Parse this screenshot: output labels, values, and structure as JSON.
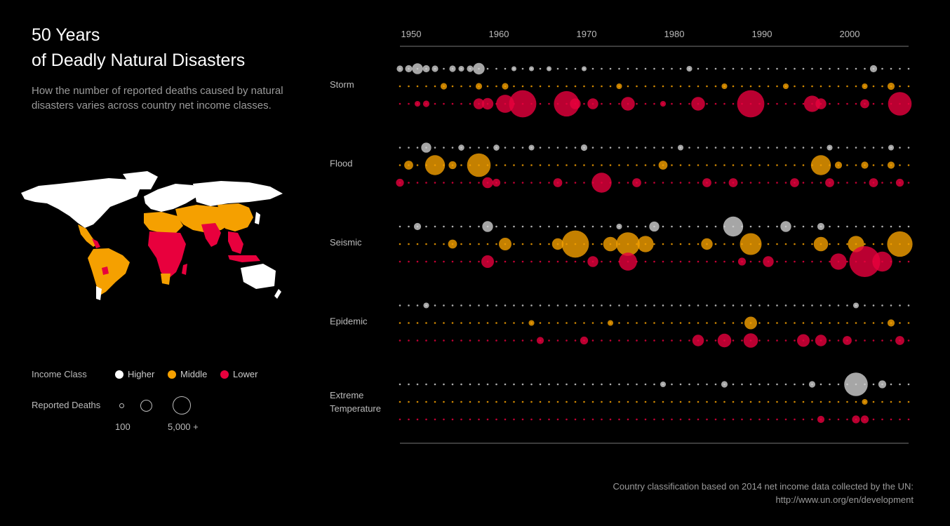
{
  "title": {
    "line1": "50 Years",
    "line2": "of Deadly Natural Disasters"
  },
  "subtitle": "How the number of reported deaths caused by natural disasters varies across country net income classes.",
  "legend": {
    "income_label": "Income Class",
    "classes": [
      {
        "label": "Higher",
        "color": "#ffffff"
      },
      {
        "label": "Middle",
        "color": "#f5a000"
      },
      {
        "label": "Lower",
        "color": "#e8003d"
      }
    ],
    "deaths_label": "Reported Deaths",
    "size_min_label": "100",
    "size_max_label": "5,000 +"
  },
  "footnote": {
    "line1": "Country classification based on 2014 net income data collected by the UN:",
    "line2": "http://www.un.org/en/development"
  },
  "chart_data": {
    "type": "scatter",
    "x_ticks": [
      "1950",
      "1960",
      "1970",
      "1980",
      "1990",
      "2000"
    ],
    "xlim": [
      1950,
      2008
    ],
    "categories": [
      "Storm",
      "Flood",
      "Seismic",
      "Epidemic",
      "Extreme Temperature"
    ],
    "classes": [
      "Higher",
      "Middle",
      "Lower"
    ],
    "colors": {
      "Higher": "#ffffff",
      "Middle": "#f5a000",
      "Lower": "#e8003d"
    },
    "size_scale": "relative deaths, 0 = none, 1 = 5,000+",
    "series": [
      {
        "category": "Storm",
        "class": "Higher",
        "points": [
          [
            1950,
            0.08
          ],
          [
            1951,
            0.1
          ],
          [
            1952,
            0.2
          ],
          [
            1953,
            0.1
          ],
          [
            1954,
            0.08
          ],
          [
            1956,
            0.08
          ],
          [
            1957,
            0.06
          ],
          [
            1958,
            0.08
          ],
          [
            1959,
            0.22
          ],
          [
            1963,
            0.04
          ],
          [
            1965,
            0.04
          ],
          [
            1967,
            0.04
          ],
          [
            1971,
            0.04
          ],
          [
            1983,
            0.06
          ],
          [
            2004,
            0.1
          ]
        ]
      },
      {
        "category": "Storm",
        "class": "Middle",
        "points": [
          [
            1955,
            0.08
          ],
          [
            1959,
            0.08
          ],
          [
            1962,
            0.08
          ],
          [
            1975,
            0.06
          ],
          [
            1987,
            0.06
          ],
          [
            1994,
            0.06
          ],
          [
            2003,
            0.06
          ],
          [
            2006,
            0.1
          ]
        ]
      },
      {
        "category": "Storm",
        "class": "Lower",
        "points": [
          [
            1952,
            0.06
          ],
          [
            1953,
            0.08
          ],
          [
            1959,
            0.2
          ],
          [
            1960,
            0.22
          ],
          [
            1962,
            0.4
          ],
          [
            1964,
            0.65
          ],
          [
            1969,
            0.6
          ],
          [
            1970,
            0.2
          ],
          [
            1972,
            0.2
          ],
          [
            1976,
            0.28
          ],
          [
            1980,
            0.06
          ],
          [
            1984,
            0.28
          ],
          [
            1990,
            0.65
          ],
          [
            1997,
            0.35
          ],
          [
            1998,
            0.2
          ],
          [
            2003,
            0.15
          ],
          [
            2007,
            0.55
          ]
        ]
      },
      {
        "category": "Flood",
        "class": "Higher",
        "points": [
          [
            1953,
            0.18
          ],
          [
            1957,
            0.07
          ],
          [
            1961,
            0.07
          ],
          [
            1965,
            0.06
          ],
          [
            1971,
            0.08
          ],
          [
            1982,
            0.06
          ],
          [
            1999,
            0.06
          ],
          [
            2006,
            0.06
          ]
        ]
      },
      {
        "category": "Flood",
        "class": "Middle",
        "points": [
          [
            1951,
            0.15
          ],
          [
            1954,
            0.45
          ],
          [
            1956,
            0.12
          ],
          [
            1959,
            0.55
          ],
          [
            1980,
            0.15
          ],
          [
            1998,
            0.45
          ],
          [
            2000,
            0.1
          ],
          [
            2003,
            0.1
          ],
          [
            2006,
            0.1
          ]
        ]
      },
      {
        "category": "Flood",
        "class": "Lower",
        "points": [
          [
            1950,
            0.12
          ],
          [
            1960,
            0.2
          ],
          [
            1961,
            0.12
          ],
          [
            1968,
            0.15
          ],
          [
            1973,
            0.45
          ],
          [
            1977,
            0.15
          ],
          [
            1985,
            0.15
          ],
          [
            1988,
            0.15
          ],
          [
            1995,
            0.15
          ],
          [
            1999,
            0.15
          ],
          [
            2004,
            0.15
          ],
          [
            2007,
            0.12
          ]
        ]
      },
      {
        "category": "Seismic",
        "class": "Higher",
        "points": [
          [
            1952,
            0.1
          ],
          [
            1960,
            0.2
          ],
          [
            1975,
            0.06
          ],
          [
            1979,
            0.18
          ],
          [
            1988,
            0.45
          ],
          [
            1994,
            0.2
          ],
          [
            1998,
            0.1
          ]
        ]
      },
      {
        "category": "Seismic",
        "class": "Middle",
        "points": [
          [
            1956,
            0.15
          ],
          [
            1962,
            0.25
          ],
          [
            1968,
            0.22
          ],
          [
            1970,
            0.65
          ],
          [
            1974,
            0.3
          ],
          [
            1976,
            0.55
          ],
          [
            1978,
            0.35
          ],
          [
            1985,
            0.22
          ],
          [
            1990,
            0.5
          ],
          [
            1998,
            0.3
          ],
          [
            2002,
            0.35
          ],
          [
            2007,
            0.6
          ]
        ]
      },
      {
        "category": "Seismic",
        "class": "Lower",
        "points": [
          [
            1960,
            0.25
          ],
          [
            1972,
            0.2
          ],
          [
            1976,
            0.4
          ],
          [
            1989,
            0.12
          ],
          [
            1992,
            0.2
          ],
          [
            2000,
            0.35
          ],
          [
            2003,
            0.75
          ],
          [
            2005,
            0.45
          ]
        ]
      },
      {
        "category": "Epidemic",
        "class": "Higher",
        "points": [
          [
            1953,
            0.06
          ],
          [
            2002,
            0.06
          ]
        ]
      },
      {
        "category": "Epidemic",
        "class": "Middle",
        "points": [
          [
            1965,
            0.06
          ],
          [
            1974,
            0.06
          ],
          [
            1990,
            0.25
          ],
          [
            2006,
            0.1
          ]
        ]
      },
      {
        "category": "Epidemic",
        "class": "Lower",
        "points": [
          [
            1966,
            0.1
          ],
          [
            1971,
            0.12
          ],
          [
            1984,
            0.22
          ],
          [
            1987,
            0.28
          ],
          [
            1990,
            0.3
          ],
          [
            1996,
            0.25
          ],
          [
            1998,
            0.22
          ],
          [
            2001,
            0.15
          ],
          [
            2007,
            0.15
          ]
        ]
      },
      {
        "category": "Extreme Temperature",
        "class": "Higher",
        "points": [
          [
            1980,
            0.06
          ],
          [
            1987,
            0.08
          ],
          [
            1997,
            0.08
          ],
          [
            2002,
            0.55
          ],
          [
            2005,
            0.12
          ]
        ]
      },
      {
        "category": "Extreme Temperature",
        "class": "Middle",
        "points": [
          [
            2003,
            0.06
          ]
        ]
      },
      {
        "category": "Extreme Temperature",
        "class": "Lower",
        "points": [
          [
            1998,
            0.1
          ],
          [
            2002,
            0.12
          ],
          [
            2003,
            0.12
          ]
        ]
      }
    ]
  }
}
